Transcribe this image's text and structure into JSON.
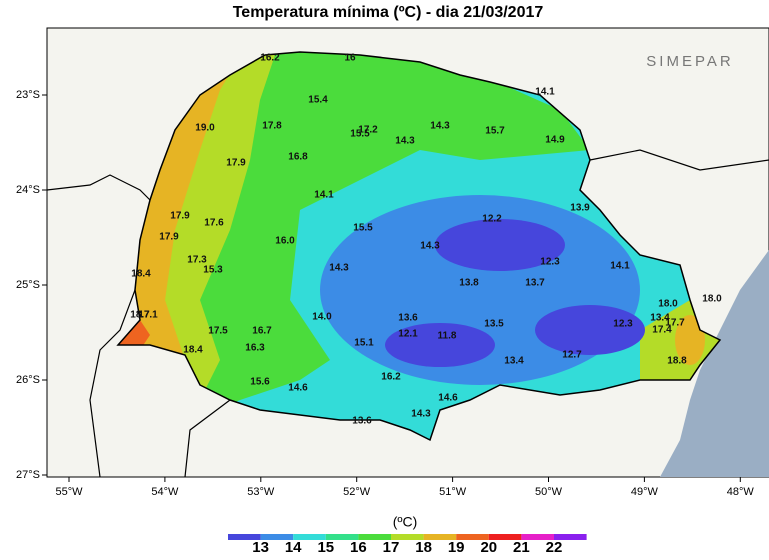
{
  "title": "Temperatura mínima (ºC) - dia 21/03/2017",
  "logo": "SIMEPAR",
  "lon_labels": [
    "55°W",
    "54°W",
    "53°W",
    "52°W",
    "51°W",
    "50°W",
    "49°W",
    "48°W"
  ],
  "lat_labels": [
    "23°S",
    "24°S",
    "25°S",
    "26°S",
    "27°S"
  ],
  "stations": [
    "16.2",
    "16",
    "14.1",
    "15.4",
    "19.0",
    "17.8",
    "17.2",
    "15.5",
    "14.3",
    "15.7",
    "14.3",
    "14.9",
    "16.8",
    "17.9",
    "14.1",
    "12.2",
    "13.9",
    "17.9",
    "17.6",
    "15.5",
    "16.0",
    "17.9",
    "14.3",
    "12.3",
    "17.3",
    "15.3",
    "14.3",
    "14.1",
    "18.4",
    "13.8",
    "13.7",
    "18.0",
    "18.0",
    "18.7",
    "17.1",
    "14.0",
    "13.6",
    "17.5",
    "16.7",
    "13.5",
    "12.3",
    "13.4",
    "17.7",
    "17.4",
    "12.1",
    "11.8",
    "15.1",
    "16.3",
    "18.4",
    "12.7",
    "13.4",
    "18.8",
    "16.2",
    "15.6",
    "14.6",
    "14.6",
    "14.3",
    "13.6"
  ],
  "colorbar": {
    "label": "(ºC)",
    "ticks": [
      13,
      14,
      15,
      16,
      17,
      18,
      19,
      20,
      21,
      22
    ],
    "colors": [
      "#4646dc",
      "#3c8ce6",
      "#33dcd8",
      "#33e08a",
      "#4bdc3c",
      "#b4dc28",
      "#e6b424",
      "#ee6420",
      "#ee2020",
      "#e620c8",
      "#8a20ee"
    ]
  }
}
